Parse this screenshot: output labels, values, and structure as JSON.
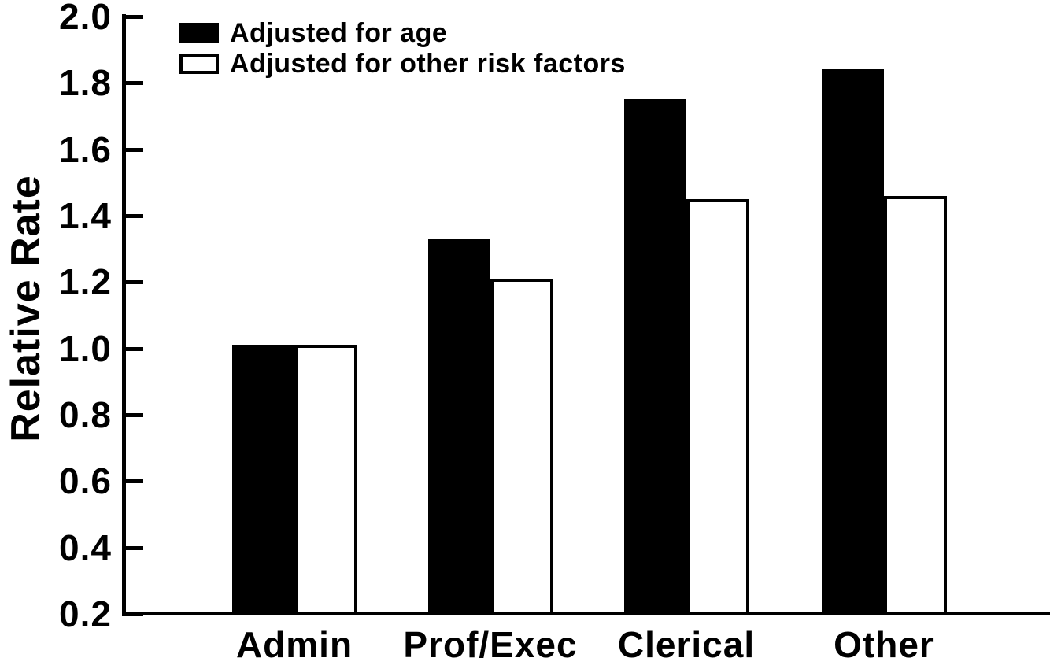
{
  "figure": {
    "background_color": "#ffffff",
    "ink_color": "#000000"
  },
  "chart_data": {
    "type": "bar",
    "title": "",
    "xlabel": "",
    "ylabel": "Relative Rate",
    "categories": [
      "Admin",
      "Prof/Exec",
      "Clerical",
      "Other"
    ],
    "series": [
      {
        "name": "Adjusted for age",
        "fill": "#000000",
        "style": "filled",
        "values": [
          1.01,
          1.33,
          1.75,
          1.84
        ]
      },
      {
        "name": "Adjusted for other risk factors",
        "fill": "#ffffff",
        "style": "open",
        "values": [
          1.01,
          1.21,
          1.45,
          1.46
        ]
      }
    ],
    "ylim": [
      0.2,
      2.0
    ],
    "ytick_labels": [
      "2.0",
      "1.8",
      "1.6",
      "1.4",
      "1.2",
      "1.0",
      "0.8",
      "0.6",
      "0.4",
      "0.2"
    ],
    "ytick_values": [
      2.0,
      1.8,
      1.6,
      1.4,
      1.2,
      1.0,
      0.8,
      0.6,
      0.4,
      0.2
    ],
    "grid": false,
    "legend_position": "top-left"
  }
}
